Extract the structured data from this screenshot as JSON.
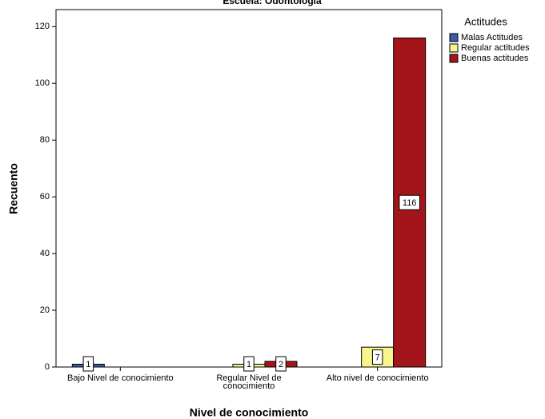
{
  "chart_data": {
    "type": "bar",
    "title": "Escuela: Odontología",
    "x_label": "Nivel de conocimiento",
    "y_label": "Recuento",
    "categories": [
      "Bajo Nivel de conocimiento",
      "Regular Nivel de conocimiento",
      "Alto nivel de conocimiento"
    ],
    "legend_title": "Actitudes",
    "legend": "right",
    "series": [
      {
        "name": "Malas Actitudes",
        "color": "#3f5aa8",
        "values": [
          1,
          null,
          null
        ]
      },
      {
        "name": "Regular actitudes",
        "color": "#f7f58c",
        "values": [
          null,
          1,
          7
        ]
      },
      {
        "name": "Buenas actitudes",
        "color": "#a3151a",
        "values": [
          null,
          2,
          116
        ]
      }
    ],
    "ylim": [
      0,
      126
    ],
    "yticks": [
      0,
      20,
      40,
      60,
      80,
      100,
      120
    ]
  }
}
